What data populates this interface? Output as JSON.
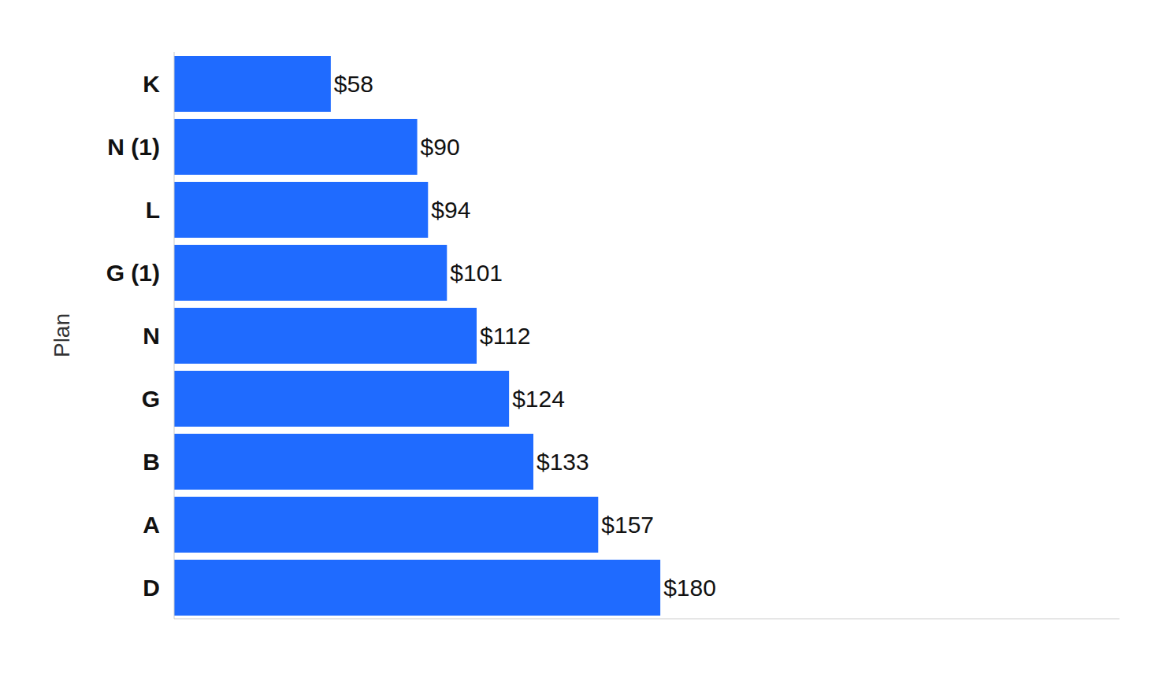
{
  "chart_data": {
    "type": "bar",
    "orientation": "horizontal",
    "y_label": "Plan",
    "categories": [
      "K",
      "N (1)",
      "L",
      "G (1)",
      "N",
      "G",
      "B",
      "A",
      "D"
    ],
    "values": [
      58,
      90,
      94,
      101,
      112,
      124,
      133,
      157,
      180
    ],
    "value_labels": [
      "$58",
      "$90",
      "$94",
      "$101",
      "$112",
      "$124",
      "$133",
      "$157",
      "$180"
    ],
    "color": "#1f6bff",
    "xlim": [
      0,
      350
    ],
    "data_labels": true,
    "tick_labels": "y",
    "grid": false
  }
}
